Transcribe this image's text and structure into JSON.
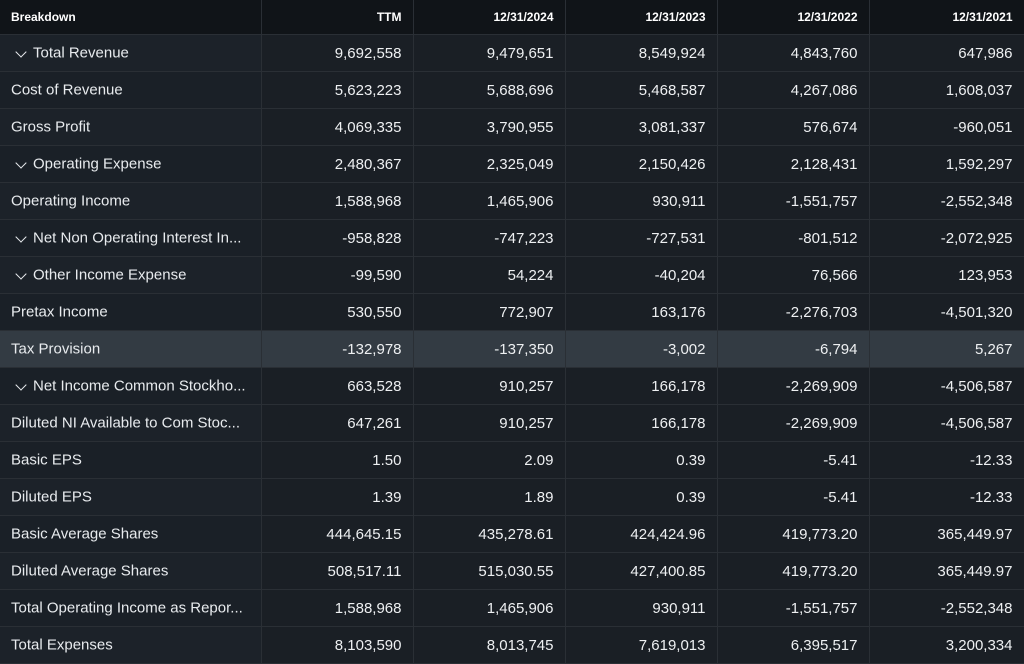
{
  "header": {
    "breakdown": "Breakdown",
    "columns": [
      "TTM",
      "12/31/2024",
      "12/31/2023",
      "12/31/2022",
      "12/31/2021"
    ]
  },
  "rows": [
    {
      "label": "Total Revenue",
      "expandable": true,
      "values": [
        "9,692,558",
        "9,479,651",
        "8,549,924",
        "4,843,760",
        "647,986"
      ]
    },
    {
      "label": "Cost of Revenue",
      "expandable": false,
      "values": [
        "5,623,223",
        "5,688,696",
        "5,468,587",
        "4,267,086",
        "1,608,037"
      ]
    },
    {
      "label": "Gross Profit",
      "expandable": false,
      "values": [
        "4,069,335",
        "3,790,955",
        "3,081,337",
        "576,674",
        "-960,051"
      ]
    },
    {
      "label": "Operating Expense",
      "expandable": true,
      "values": [
        "2,480,367",
        "2,325,049",
        "2,150,426",
        "2,128,431",
        "1,592,297"
      ]
    },
    {
      "label": "Operating Income",
      "expandable": false,
      "values": [
        "1,588,968",
        "1,465,906",
        "930,911",
        "-1,551,757",
        "-2,552,348"
      ]
    },
    {
      "label": "Net Non Operating Interest In...",
      "expandable": true,
      "values": [
        "-958,828",
        "-747,223",
        "-727,531",
        "-801,512",
        "-2,072,925"
      ]
    },
    {
      "label": "Other Income Expense",
      "expandable": true,
      "values": [
        "-99,590",
        "54,224",
        "-40,204",
        "76,566",
        "123,953"
      ]
    },
    {
      "label": "Pretax Income",
      "expandable": false,
      "values": [
        "530,550",
        "772,907",
        "163,176",
        "-2,276,703",
        "-4,501,320"
      ]
    },
    {
      "label": "Tax Provision",
      "expandable": false,
      "highlight": true,
      "values": [
        "-132,978",
        "-137,350",
        "-3,002",
        "-6,794",
        "5,267"
      ]
    },
    {
      "label": "Net Income Common Stockho...",
      "expandable": true,
      "values": [
        "663,528",
        "910,257",
        "166,178",
        "-2,269,909",
        "-4,506,587"
      ]
    },
    {
      "label": "Diluted NI Available to Com Stoc...",
      "expandable": false,
      "values": [
        "647,261",
        "910,257",
        "166,178",
        "-2,269,909",
        "-4,506,587"
      ]
    },
    {
      "label": "Basic EPS",
      "expandable": false,
      "values": [
        "1.50",
        "2.09",
        "0.39",
        "-5.41",
        "-12.33"
      ]
    },
    {
      "label": "Diluted EPS",
      "expandable": false,
      "values": [
        "1.39",
        "1.89",
        "0.39",
        "-5.41",
        "-12.33"
      ]
    },
    {
      "label": "Basic Average Shares",
      "expandable": false,
      "values": [
        "444,645.15",
        "435,278.61",
        "424,424.96",
        "419,773.20",
        "365,449.97"
      ]
    },
    {
      "label": "Diluted Average Shares",
      "expandable": false,
      "values": [
        "508,517.11",
        "515,030.55",
        "427,400.85",
        "419,773.20",
        "365,449.97"
      ]
    },
    {
      "label": "Total Operating Income as Repor...",
      "expandable": false,
      "values": [
        "1,588,968",
        "1,465,906",
        "930,911",
        "-1,551,757",
        "-2,552,348"
      ]
    },
    {
      "label": "Total Expenses",
      "expandable": false,
      "values": [
        "8,103,590",
        "8,013,745",
        "7,619,013",
        "6,395,517",
        "3,200,334"
      ]
    }
  ]
}
